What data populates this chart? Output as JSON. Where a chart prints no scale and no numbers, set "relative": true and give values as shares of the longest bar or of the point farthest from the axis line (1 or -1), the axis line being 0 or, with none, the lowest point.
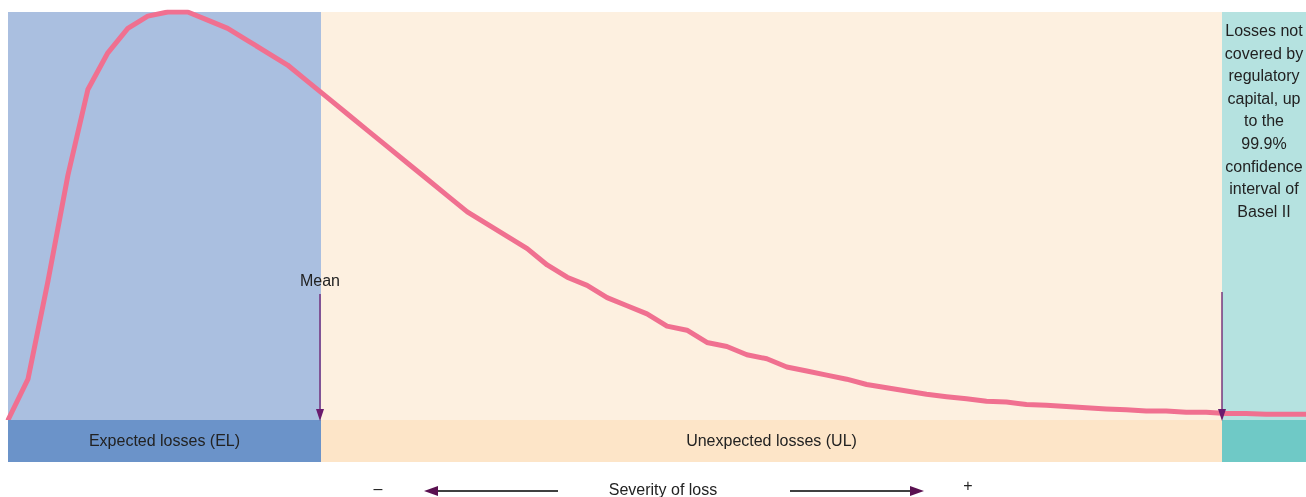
{
  "chart_data": {
    "type": "line",
    "relative": true,
    "xlabel": "Severity of loss",
    "tick_labels": false,
    "grid": false,
    "legend": false,
    "marker": "none",
    "line_style": "solid",
    "categories": [
      null,
      null,
      null,
      null,
      null,
      null,
      null,
      null,
      null,
      null,
      null,
      null,
      null,
      null,
      null,
      null,
      null,
      null,
      null,
      null,
      null,
      null,
      null,
      null,
      null,
      null,
      null,
      null,
      null,
      null,
      null,
      null,
      null,
      null,
      null,
      null,
      null,
      null,
      null,
      null,
      null,
      null,
      null,
      null,
      null,
      null,
      null,
      null,
      null,
      null,
      null,
      null,
      null,
      null,
      null,
      null,
      null,
      null,
      null,
      null,
      null,
      null,
      null,
      null,
      null,
      null
    ],
    "annotations": [
      "Expected losses (EL)",
      "Unexpected losses (UL)",
      "Losses not covered by regulatory capital, up to the 99.9% confidence interval of Basel II",
      "Mean",
      "–",
      "+"
    ],
    "series": [
      {
        "color": "#f07090",
        "values": [
          0,
          0.1,
          0.34,
          0.6,
          0.81,
          0.9,
          0.96,
          0.99,
          1,
          1,
          0.98,
          0.96,
          0.93,
          0.9,
          0.87,
          0.83,
          0.79,
          0.75,
          0.71,
          0.67,
          0.63,
          0.59,
          0.55,
          0.51,
          0.48,
          0.45,
          0.42,
          0.38,
          0.35,
          0.33,
          0.3,
          0.28,
          0.26,
          0.23,
          0.22,
          0.19,
          0.18,
          0.16,
          0.15,
          0.13,
          0.12,
          0.11,
          0.1,
          0.087,
          0.079,
          0.071,
          0.063,
          0.057,
          0.052,
          0.046,
          0.044,
          0.038,
          0.036,
          0.033,
          0.03,
          0.027,
          0.025,
          0.022,
          0.022,
          0.019,
          0.019,
          0.016,
          0.016,
          0.014,
          0.014,
          0.014
        ]
      }
    ]
  }
}
